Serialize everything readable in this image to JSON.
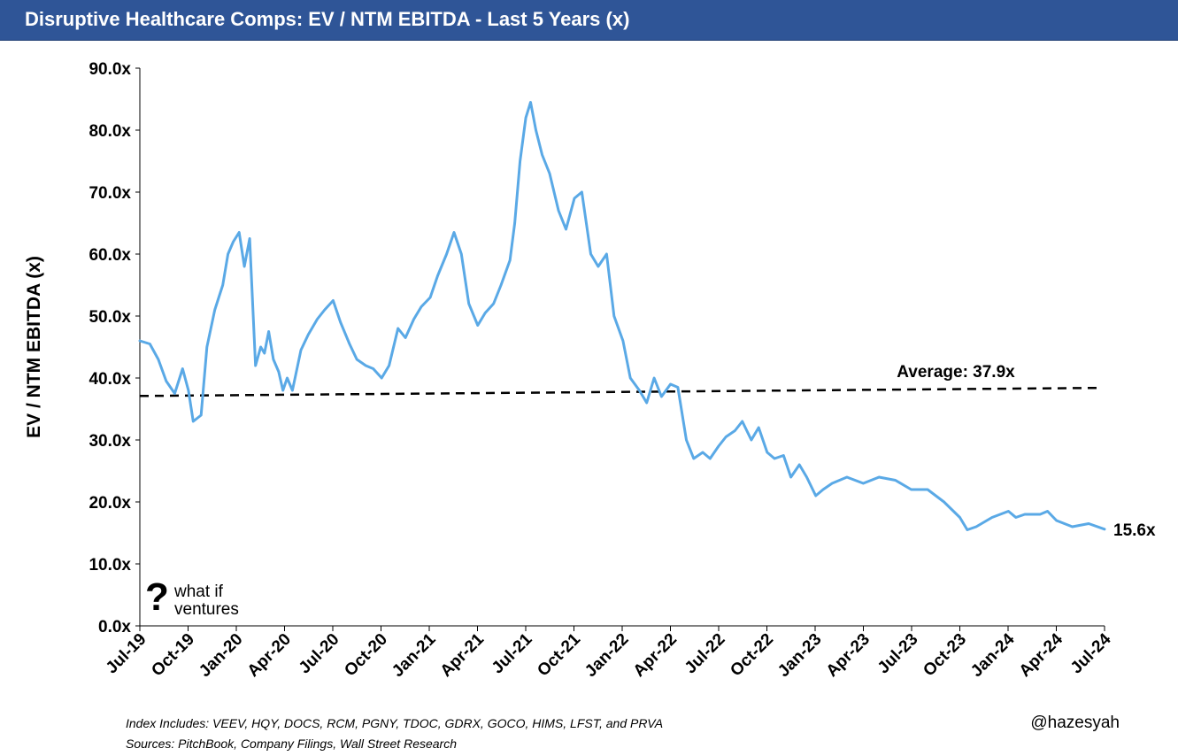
{
  "header": {
    "title": "Disruptive Healthcare Comps: EV / NTM EBITDA - Last 5 Years (x)"
  },
  "colors": {
    "header_bg": "#2f5597",
    "series": "#5aa9e6",
    "average_line": "#000000"
  },
  "logo": {
    "symbol": "?",
    "line1": "what if",
    "line2": "ventures"
  },
  "footer": {
    "note1": "Index Includes: VEEV, HQY, DOCS, RCM, PGNY, TDOC, GDRX, GOCO, HIMS, LFST, and PRVA",
    "note2": "Sources: PitchBook, Company Filings, Wall Street Research",
    "handle": "@hazesyah"
  },
  "chart_data": {
    "type": "line",
    "title": "Disruptive Healthcare Comps: EV / NTM EBITDA - Last 5 Years (x)",
    "xlabel": "",
    "ylabel": "EV / NTM EBITDA (x)",
    "ylim": [
      0,
      90
    ],
    "yticks": [
      "0.0x",
      "10.0x",
      "20.0x",
      "30.0x",
      "40.0x",
      "50.0x",
      "60.0x",
      "70.0x",
      "80.0x",
      "90.0x"
    ],
    "xlim": [
      "2019-07-01",
      "2024-07-01"
    ],
    "xticks": [
      "Jul-19",
      "Oct-19",
      "Jan-20",
      "Apr-20",
      "Jul-20",
      "Oct-20",
      "Jan-21",
      "Apr-21",
      "Jul-21",
      "Oct-21",
      "Jan-22",
      "Apr-22",
      "Jul-22",
      "Oct-22",
      "Jan-23",
      "Apr-23",
      "Jul-23",
      "Oct-23",
      "Jan-24",
      "Apr-24",
      "Jul-24"
    ],
    "grid": false,
    "legend": "none",
    "series": [
      {
        "x": [
          "2019-07-01",
          "2019-07-20",
          "2019-08-05",
          "2019-08-20",
          "2019-09-05",
          "2019-09-20",
          "2019-10-01",
          "2019-10-10",
          "2019-10-25",
          "2019-11-05",
          "2019-11-20",
          "2019-12-05",
          "2019-12-15",
          "2019-12-25",
          "2020-01-05",
          "2020-01-15",
          "2020-01-25",
          "2020-02-05",
          "2020-02-15",
          "2020-02-22",
          "2020-03-01",
          "2020-03-10",
          "2020-03-20",
          "2020-03-28",
          "2020-04-05",
          "2020-04-15",
          "2020-05-01",
          "2020-05-15",
          "2020-06-01",
          "2020-06-15",
          "2020-07-01",
          "2020-07-15",
          "2020-08-01",
          "2020-08-15",
          "2020-09-01",
          "2020-09-15",
          "2020-10-01",
          "2020-10-15",
          "2020-11-01",
          "2020-11-15",
          "2020-12-01",
          "2020-12-15",
          "2021-01-01",
          "2021-01-15",
          "2021-02-01",
          "2021-02-15",
          "2021-03-01",
          "2021-03-15",
          "2021-04-01",
          "2021-04-15",
          "2021-05-01",
          "2021-05-15",
          "2021-06-01",
          "2021-06-10",
          "2021-06-20",
          "2021-07-01",
          "2021-07-10",
          "2021-07-20",
          "2021-08-01",
          "2021-08-15",
          "2021-09-01",
          "2021-09-15",
          "2021-10-01",
          "2021-10-15",
          "2021-11-01",
          "2021-11-15",
          "2021-12-01",
          "2021-12-15",
          "2022-01-01",
          "2022-01-15",
          "2022-02-01",
          "2022-02-15",
          "2022-03-01",
          "2022-03-15",
          "2022-04-01",
          "2022-04-15",
          "2022-05-01",
          "2022-05-15",
          "2022-06-01",
          "2022-06-15",
          "2022-07-01",
          "2022-07-15",
          "2022-08-01",
          "2022-08-15",
          "2022-09-01",
          "2022-09-15",
          "2022-10-01",
          "2022-10-15",
          "2022-11-01",
          "2022-11-15",
          "2022-12-01",
          "2022-12-15",
          "2023-01-01",
          "2023-01-15",
          "2023-02-01",
          "2023-03-01",
          "2023-04-01",
          "2023-05-01",
          "2023-06-01",
          "2023-07-01",
          "2023-08-01",
          "2023-09-01",
          "2023-10-01",
          "2023-10-15",
          "2023-11-01",
          "2023-12-01",
          "2024-01-01",
          "2024-01-15",
          "2024-02-01",
          "2024-03-01",
          "2024-03-15",
          "2024-04-01",
          "2024-05-01",
          "2024-06-01",
          "2024-07-01"
        ],
        "values": [
          46.0,
          45.5,
          43.0,
          39.5,
          37.5,
          41.5,
          38.0,
          33.0,
          34.0,
          45.0,
          51.0,
          55.0,
          60.0,
          62.0,
          63.5,
          58.0,
          62.5,
          42.0,
          45.0,
          44.0,
          47.5,
          43.0,
          41.0,
          38.0,
          40.0,
          38.0,
          44.5,
          47.0,
          49.5,
          51.0,
          52.5,
          49.0,
          45.5,
          43.0,
          42.0,
          41.5,
          40.0,
          42.0,
          48.0,
          46.5,
          49.5,
          51.5,
          53.0,
          56.5,
          60.0,
          63.5,
          60.0,
          52.0,
          48.5,
          50.5,
          52.0,
          55.0,
          59.0,
          65.0,
          75.0,
          82.0,
          84.5,
          80.0,
          76.0,
          73.0,
          67.0,
          64.0,
          69.0,
          70.0,
          60.0,
          58.0,
          60.0,
          50.0,
          46.0,
          40.0,
          38.0,
          36.0,
          40.0,
          37.0,
          39.0,
          38.5,
          30.0,
          27.0,
          28.0,
          27.0,
          29.0,
          30.5,
          31.5,
          33.0,
          30.0,
          32.0,
          28.0,
          27.0,
          27.5,
          24.0,
          26.0,
          24.0,
          21.0,
          22.0,
          23.0,
          24.0,
          23.0,
          24.0,
          23.5,
          22.0,
          22.0,
          20.0,
          17.5,
          15.5,
          16.0,
          17.5,
          18.5,
          17.5,
          18.0,
          18.0,
          18.5,
          17.0,
          16.0,
          16.5,
          15.6
        ]
      }
    ],
    "average": {
      "label": "Average: 37.9x",
      "start": 37.1,
      "end": 38.4
    },
    "annotations": [
      {
        "text": "15.6x",
        "x": "2024-07-01",
        "y": 15.6
      }
    ]
  }
}
